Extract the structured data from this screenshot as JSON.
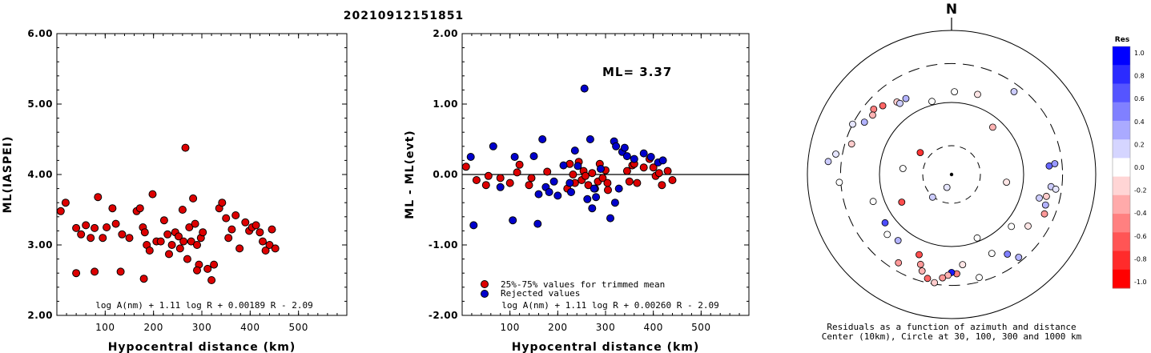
{
  "event_id": "20210912151851",
  "chart_data": [
    {
      "type": "scatter",
      "xlabel": "Hypocentral distance (km)",
      "ylabel": "ML(IASPEI)",
      "xlim": [
        0,
        600
      ],
      "ylim": [
        2.0,
        6.0
      ],
      "x_ticks": [
        100,
        200,
        300,
        400,
        500
      ],
      "y_ticks": [
        "2.00",
        "3.00",
        "4.00",
        "5.00",
        "6.00"
      ],
      "formula": "log A(nm) + 1.11 log R + 0.00189 R - 2.09",
      "series": [
        {
          "color": "#dd0000",
          "points": [
            [
              8,
              3.48
            ],
            [
              18,
              3.6
            ],
            [
              40,
              3.24
            ],
            [
              50,
              3.15
            ],
            [
              60,
              3.28
            ],
            [
              70,
              3.1
            ],
            [
              78,
              3.24
            ],
            [
              85,
              3.68
            ],
            [
              95,
              3.1
            ],
            [
              103,
              3.25
            ],
            [
              115,
              3.52
            ],
            [
              122,
              3.3
            ],
            [
              135,
              3.15
            ],
            [
              150,
              3.1
            ],
            [
              165,
              3.48
            ],
            [
              172,
              3.52
            ],
            [
              178,
              3.25
            ],
            [
              182,
              3.18
            ],
            [
              186,
              3.0
            ],
            [
              192,
              2.92
            ],
            [
              198,
              3.72
            ],
            [
              206,
              3.05
            ],
            [
              215,
              3.05
            ],
            [
              222,
              3.35
            ],
            [
              229,
              3.15
            ],
            [
              232,
              2.87
            ],
            [
              238,
              3.0
            ],
            [
              245,
              3.18
            ],
            [
              252,
              3.12
            ],
            [
              255,
              2.95
            ],
            [
              260,
              3.5
            ],
            [
              262,
              3.05
            ],
            [
              266,
              4.38
            ],
            [
              270,
              2.8
            ],
            [
              274,
              3.25
            ],
            [
              278,
              3.05
            ],
            [
              282,
              3.66
            ],
            [
              286,
              3.3
            ],
            [
              290,
              3.0
            ],
            [
              294,
              2.72
            ],
            [
              298,
              3.1
            ],
            [
              302,
              3.18
            ],
            [
              312,
              2.66
            ],
            [
              320,
              2.5
            ],
            [
              325,
              2.72
            ],
            [
              336,
              3.52
            ],
            [
              342,
              3.6
            ],
            [
              350,
              3.38
            ],
            [
              355,
              3.1
            ],
            [
              362,
              3.22
            ],
            [
              370,
              3.42
            ],
            [
              378,
              2.95
            ],
            [
              390,
              3.32
            ],
            [
              398,
              3.2
            ],
            [
              404,
              3.25
            ],
            [
              412,
              3.28
            ],
            [
              420,
              3.18
            ],
            [
              426,
              3.05
            ],
            [
              432,
              2.92
            ],
            [
              440,
              3.0
            ],
            [
              445,
              3.22
            ],
            [
              452,
              2.95
            ],
            [
              78,
              2.62
            ],
            [
              40,
              2.6
            ],
            [
              132,
              2.62
            ],
            [
              180,
              2.52
            ],
            [
              290,
              2.64
            ]
          ]
        }
      ]
    },
    {
      "type": "scatter",
      "xlabel": "Hypocentral distance (km)",
      "ylabel": "ML - ML(evt)",
      "xlim": [
        0,
        600
      ],
      "ylim": [
        -2.0,
        2.0
      ],
      "x_ticks": [
        100,
        200,
        300,
        400,
        500
      ],
      "y_ticks": [
        "-2.00",
        "-1.00",
        "0.00",
        "1.00",
        "2.00"
      ],
      "annotation": "ML= 3.37",
      "formula": "log A(nm) + 1.11 log R + 0.00260 R - 2.09",
      "legend": [
        "25%-75% values for trimmed mean",
        "Rejected values"
      ],
      "series": [
        {
          "name": "25%-75% values for trimmed mean",
          "color": "#dd0000",
          "points": [
            [
              8,
              0.11
            ],
            [
              30,
              -0.08
            ],
            [
              50,
              -0.15
            ],
            [
              55,
              -0.02
            ],
            [
              80,
              -0.05
            ],
            [
              100,
              -0.12
            ],
            [
              115,
              0.03
            ],
            [
              120,
              0.14
            ],
            [
              140,
              -0.15
            ],
            [
              145,
              -0.05
            ],
            [
              178,
              0.04
            ],
            [
              220,
              -0.2
            ],
            [
              225,
              0.15
            ],
            [
              232,
              0.0
            ],
            [
              236,
              -0.12
            ],
            [
              244,
              0.18
            ],
            [
              250,
              -0.08
            ],
            [
              254,
              0.05
            ],
            [
              258,
              -0.02
            ],
            [
              264,
              -0.15
            ],
            [
              272,
              0.02
            ],
            [
              278,
              -0.2
            ],
            [
              284,
              -0.1
            ],
            [
              288,
              0.15
            ],
            [
              294,
              -0.05
            ],
            [
              300,
              0.06
            ],
            [
              305,
              -0.22
            ],
            [
              345,
              0.05
            ],
            [
              350,
              -0.1
            ],
            [
              356,
              0.13
            ],
            [
              360,
              0.15
            ],
            [
              366,
              -0.12
            ],
            [
              380,
              0.1
            ],
            [
              392,
              0.22
            ],
            [
              400,
              0.1
            ],
            [
              405,
              -0.02
            ],
            [
              412,
              0.02
            ],
            [
              418,
              -0.15
            ],
            [
              430,
              0.05
            ],
            [
              440,
              -0.08
            ],
            [
              304,
              -0.12
            ]
          ]
        },
        {
          "name": "Rejected values",
          "color": "#0000cc",
          "points": [
            [
              18,
              0.25
            ],
            [
              24,
              -0.72
            ],
            [
              65,
              0.4
            ],
            [
              80,
              -0.18
            ],
            [
              106,
              -0.65
            ],
            [
              110,
              0.25
            ],
            [
              150,
              0.26
            ],
            [
              158,
              -0.7
            ],
            [
              160,
              -0.28
            ],
            [
              168,
              0.5
            ],
            [
              175,
              -0.18
            ],
            [
              182,
              -0.25
            ],
            [
              192,
              -0.1
            ],
            [
              200,
              -0.3
            ],
            [
              212,
              0.13
            ],
            [
              225,
              -0.12
            ],
            [
              228,
              -0.25
            ],
            [
              236,
              0.34
            ],
            [
              242,
              0.12
            ],
            [
              256,
              1.22
            ],
            [
              262,
              -0.35
            ],
            [
              268,
              0.5
            ],
            [
              272,
              -0.48
            ],
            [
              276,
              -0.2
            ],
            [
              280,
              -0.32
            ],
            [
              290,
              0.08
            ],
            [
              310,
              -0.62
            ],
            [
              318,
              0.47
            ],
            [
              322,
              0.4
            ],
            [
              328,
              -0.2
            ],
            [
              335,
              0.32
            ],
            [
              345,
              0.26
            ],
            [
              360,
              0.22
            ],
            [
              380,
              0.3
            ],
            [
              395,
              0.25
            ],
            [
              410,
              0.17
            ],
            [
              420,
              0.2
            ],
            [
              320,
              -0.4
            ],
            [
              340,
              0.38
            ]
          ]
        }
      ]
    },
    {
      "type": "polar_scatter",
      "north_label": "N",
      "caption": [
        "Residuals as a function of azimuth and distance",
        "Center (10km), Circle at 30, 100, 300 and 1000 km"
      ],
      "colorbar": {
        "title": "Res",
        "ticks": [
          "1.0",
          "0.8",
          "0.6",
          "0.4",
          "0.2",
          "0.0",
          "-0.2",
          "-0.4",
          "-0.6",
          "-0.8",
          "-1.0"
        ],
        "colors": [
          "#0000ff",
          "#2b2bff",
          "#5555ff",
          "#8080ff",
          "#aaaaff",
          "#d5d5ff",
          "#ffffff",
          "#ffd5d5",
          "#ffaaaa",
          "#ff8080",
          "#ff5555",
          "#ff2b2b",
          "#ff0000"
        ]
      },
      "points": [
        {
          "az": 329,
          "r": 1.23,
          "res": 0.3
        },
        {
          "az": 323,
          "r": 1.26,
          "res": -0.2
        },
        {
          "az": 315,
          "r": 1.35,
          "res": -0.6
        },
        {
          "az": 310,
          "r": 1.41,
          "res": -0.5
        },
        {
          "az": 307,
          "r": 1.37,
          "res": -0.3
        },
        {
          "az": 301,
          "r": 1.41,
          "res": 0.3
        },
        {
          "az": 297,
          "r": 1.54,
          "res": 0.1
        },
        {
          "az": 287,
          "r": 1.45,
          "res": -0.2
        },
        {
          "az": 280,
          "r": 1.63,
          "res": 0.1
        },
        {
          "az": 276,
          "r": 1.72,
          "res": 0.2
        },
        {
          "az": 266,
          "r": 1.56,
          "res": 0.0
        },
        {
          "az": 324,
          "r": 1.22,
          "res": 0.2
        },
        {
          "az": 345,
          "r": 1.05,
          "res": 0.0
        },
        {
          "az": 2,
          "r": 1.15,
          "res": 0.0
        },
        {
          "az": 18,
          "r": 1.17,
          "res": -0.1
        },
        {
          "az": 37,
          "r": 1.44,
          "res": 0.2
        },
        {
          "az": 41,
          "r": 0.87,
          "res": -0.3
        },
        {
          "az": 305,
          "r": 0.53,
          "res": -0.8
        },
        {
          "az": 277,
          "r": 0.68,
          "res": 0.0
        },
        {
          "az": 220,
          "r": 0.41,
          "res": 0.2
        },
        {
          "az": 200,
          "r": 0.19,
          "res": 0.1
        },
        {
          "az": 98,
          "r": 0.77,
          "res": -0.1
        },
        {
          "az": 85,
          "r": 1.36,
          "res": 0.6
        },
        {
          "az": 84,
          "r": 1.44,
          "res": 0.4
        },
        {
          "az": 97,
          "r": 1.39,
          "res": 0.2
        },
        {
          "az": 98,
          "r": 1.46,
          "res": 0.1
        },
        {
          "az": 103,
          "r": 1.35,
          "res": -0.2
        },
        {
          "az": 108,
          "r": 1.37,
          "res": 0.3
        },
        {
          "az": 105,
          "r": 1.26,
          "res": 0.2
        },
        {
          "az": 113,
          "r": 1.4,
          "res": -0.4
        },
        {
          "az": 124,
          "r": 1.28,
          "res": -0.1
        },
        {
          "az": 131,
          "r": 1.1,
          "res": 0.0
        },
        {
          "az": 141,
          "r": 1.48,
          "res": 0.3
        },
        {
          "az": 145,
          "r": 1.35,
          "res": 0.5
        },
        {
          "az": 153,
          "r": 1.23,
          "res": 0.0
        },
        {
          "az": 158,
          "r": 0.95,
          "res": 0.0
        },
        {
          "az": 165,
          "r": 1.48,
          "res": 0.0
        },
        {
          "az": 173,
          "r": 1.26,
          "res": -0.1
        },
        {
          "az": 177,
          "r": 1.38,
          "res": -0.5
        },
        {
          "az": 180,
          "r": 1.36,
          "res": 0.9
        },
        {
          "az": 182,
          "r": 1.4,
          "res": -0.3
        },
        {
          "az": 185,
          "r": 1.44,
          "res": -0.4
        },
        {
          "az": 189,
          "r": 1.52,
          "res": -0.2
        },
        {
          "az": 193,
          "r": 1.48,
          "res": -0.6
        },
        {
          "az": 197,
          "r": 1.4,
          "res": -0.3
        },
        {
          "az": 199,
          "r": 1.32,
          "res": -0.4
        },
        {
          "az": 202,
          "r": 1.2,
          "res": -0.7
        },
        {
          "az": 211,
          "r": 1.43,
          "res": -0.4
        },
        {
          "az": 219,
          "r": 1.18,
          "res": 0.3
        },
        {
          "az": 227,
          "r": 1.22,
          "res": 0.0
        },
        {
          "az": 234,
          "r": 1.14,
          "res": 0.7
        },
        {
          "az": 241,
          "r": 0.79,
          "res": -0.7
        },
        {
          "az": 251,
          "r": 1.15,
          "res": 0.0
        }
      ]
    }
  ]
}
